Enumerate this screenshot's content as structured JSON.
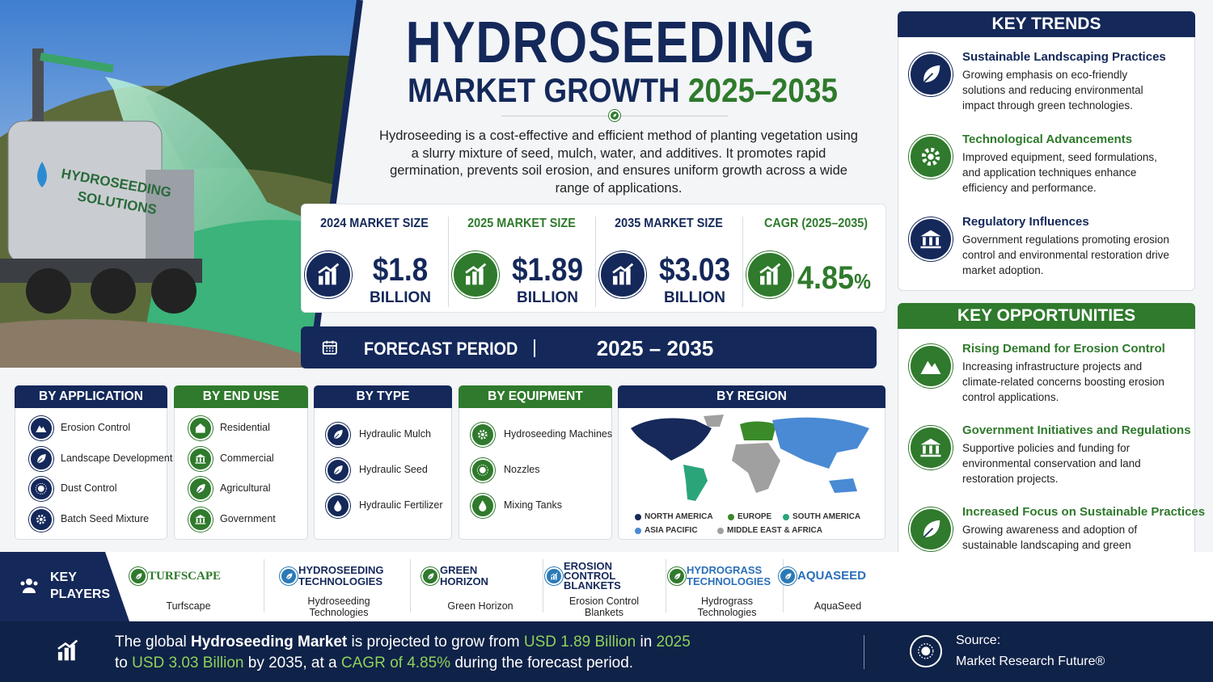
{
  "photo": {
    "truck_label_1": "HYDROSEEDING",
    "truck_label_2": "SOLUTIONS"
  },
  "header": {
    "title": "HYDROSEEDING",
    "subtitle": "MARKET GROWTH",
    "subtitle_years": "2025–2035",
    "description": "Hydroseeding is a cost-effective and efficient method of planting vegetation using a slurry mixture of seed, mulch, water, and additives. It promotes rapid germination, prevents soil erosion, and ensures uniform growth across a wide range of applications."
  },
  "stats": [
    {
      "label": "2024 MARKET SIZE",
      "value": "$1.8",
      "unit": "BILLION"
    },
    {
      "label": "2025 MARKET SIZE",
      "value": "$1.89",
      "unit": "BILLION"
    },
    {
      "label": "2035 MARKET SIZE",
      "value": "$3.03",
      "unit": "BILLION"
    },
    {
      "label": "CAGR (2025–2035)",
      "value": "4.85",
      "unit": "%"
    }
  ],
  "forecast": {
    "label": "FORECAST PERIOD",
    "period": "2025 – 2035"
  },
  "key_trends": {
    "title": "KEY TRENDS",
    "items": [
      {
        "title": "Sustainable Landscaping Practices",
        "text": "Growing emphasis on eco-friendly solutions and reducing environmental impact through green technologies."
      },
      {
        "title": "Technological Advancements",
        "text": "Improved equipment, seed formulations, and application techniques enhance efficiency and performance."
      },
      {
        "title": "Regulatory Influences",
        "text": "Government regulations promoting erosion control and environmental restoration drive market adoption."
      }
    ]
  },
  "key_opportunities": {
    "title": "KEY OPPORTUNITIES",
    "items": [
      {
        "title": "Rising Demand for Erosion Control",
        "text": "Increasing infrastructure projects and climate-related concerns boosting erosion control applications."
      },
      {
        "title": "Government Initiatives and Regulations",
        "text": "Supportive policies and funding for environmental conservation and land restoration projects."
      },
      {
        "title": "Increased Focus on Sustainable Practices",
        "text": "Growing awareness and adoption of sustainable landscaping and green infrastructure solutions."
      }
    ]
  },
  "segments": [
    {
      "title": "BY APPLICATION",
      "items": [
        "Erosion Control",
        "Landscape Development",
        "Dust Control",
        "Batch Seed Mixture"
      ]
    },
    {
      "title": "BY END USE",
      "items": [
        "Residential",
        "Commercial",
        "Agricultural",
        "Government"
      ]
    },
    {
      "title": "BY TYPE",
      "items": [
        "Hydraulic Mulch",
        "Hydraulic Seed",
        "Hydraulic Fertilizer"
      ]
    },
    {
      "title": "BY EQUIPMENT",
      "items": [
        "Hydroseeding Machines",
        "Nozzles",
        "Mixing Tanks"
      ]
    }
  ],
  "region": {
    "title": "BY REGION",
    "legend": [
      {
        "name": "NORTH AMERICA",
        "color": "#16295a"
      },
      {
        "name": "EUROPE",
        "color": "#3a8a2a"
      },
      {
        "name": "SOUTH AMERICA",
        "color": "#2aa57a"
      },
      {
        "name": "ASIA PACIFIC",
        "color": "#4a8ad4"
      },
      {
        "name": "MIDDLE EAST & AFRICA",
        "color": "#a0a0a0"
      }
    ]
  },
  "key_players": {
    "title": "KEY PLAYERS",
    "players": [
      {
        "logo": [
          "TURFSCAPE"
        ],
        "name": "Turfscape"
      },
      {
        "logo": [
          "HYDROSEEDING",
          "TECHNOLOGIES"
        ],
        "name": "Hydroseeding Technologies"
      },
      {
        "logo": [
          "GREEN",
          "HORIZON"
        ],
        "name": "Green Horizon"
      },
      {
        "logo": [
          "EROSION",
          "CONTROL",
          "BLANKETS"
        ],
        "name": "Erosion Control Blankets"
      },
      {
        "logo": [
          "HYDROGRASS",
          "TECHNOLOGIES"
        ],
        "name": "Hydrograss Technologies"
      },
      {
        "logo": [
          "AQUASEED"
        ],
        "name": "AquaSeed"
      }
    ]
  },
  "footer": {
    "lines": [
      [
        {
          "text": "The global "
        },
        {
          "text": "Hydroseeding Market",
          "style": "bold"
        },
        {
          "text": " is projected to grow from "
        },
        {
          "text": "USD 1.89 Billion",
          "style": "green"
        },
        {
          "text": " in "
        },
        {
          "text": "2025",
          "style": "green"
        }
      ],
      [
        {
          "text": "to "
        },
        {
          "text": "USD 3.03 Billion",
          "style": "green"
        },
        {
          "text": " by 2035, at a "
        },
        {
          "text": "CAGR of 4.85%",
          "style": "green"
        },
        {
          "text": " during the forecast period."
        }
      ]
    ],
    "source_label": "Source:",
    "source": "Market Research Future®"
  }
}
